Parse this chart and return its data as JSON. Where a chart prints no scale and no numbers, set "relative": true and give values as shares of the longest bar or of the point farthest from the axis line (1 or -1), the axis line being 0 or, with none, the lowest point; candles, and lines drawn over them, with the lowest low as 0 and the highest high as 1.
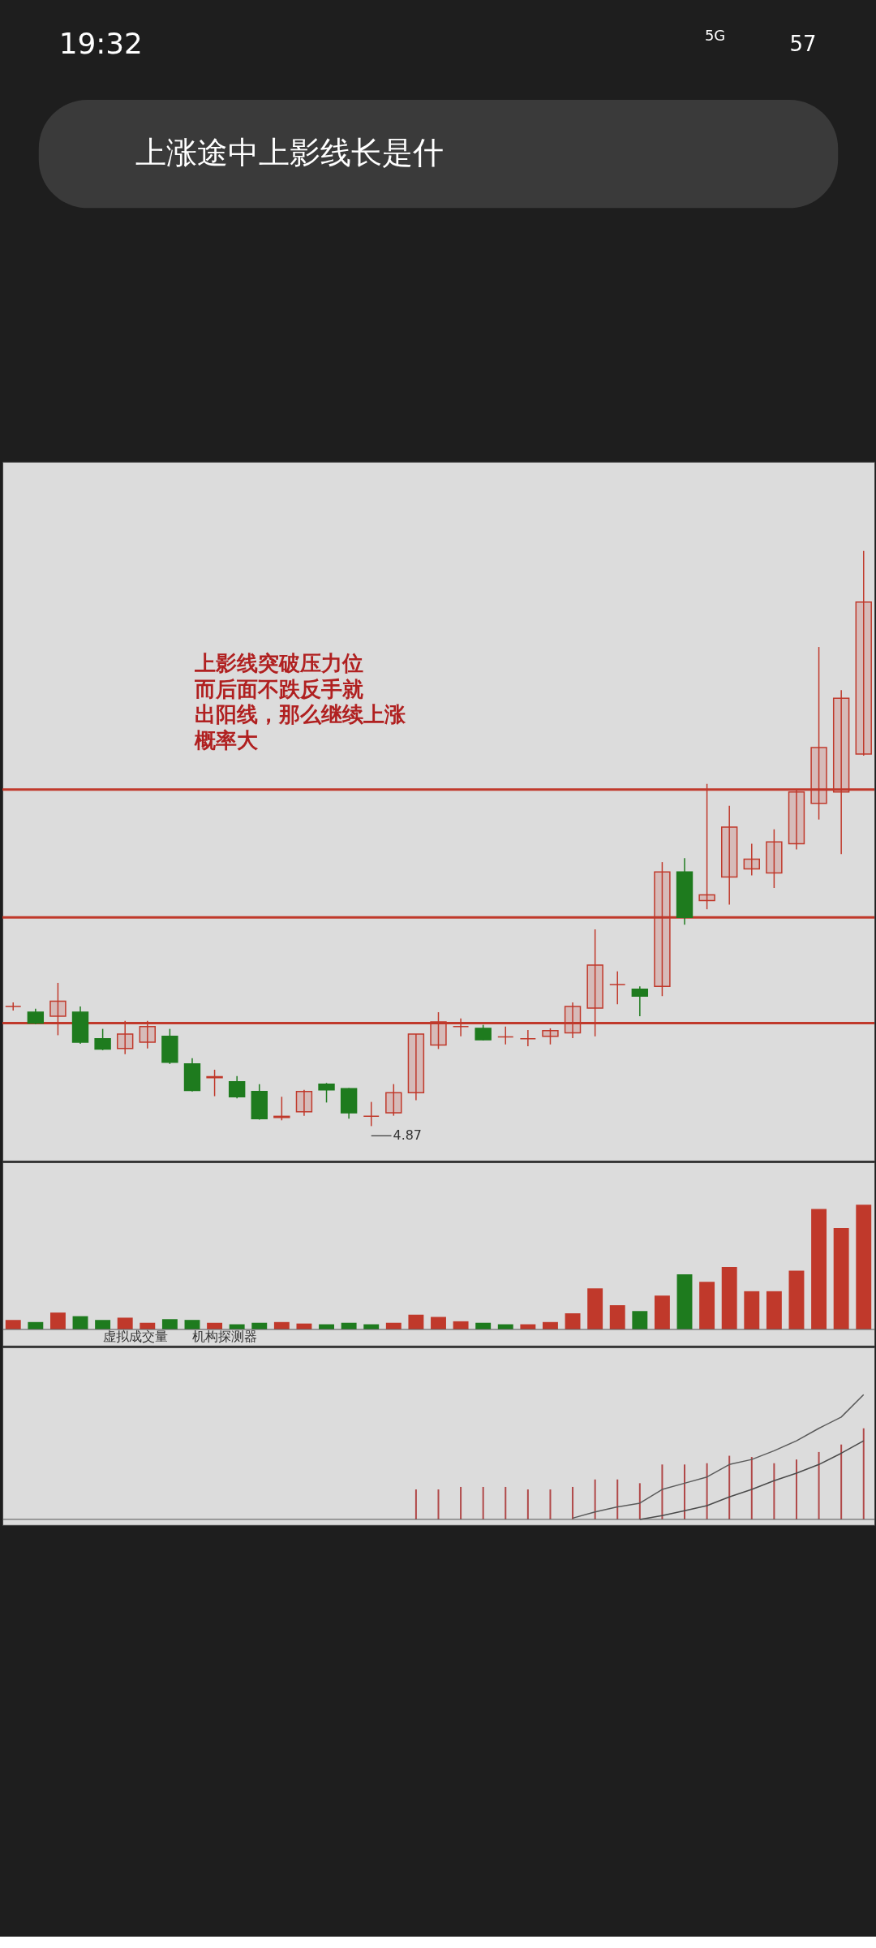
{
  "chart_data": [
    {
      "type": "other",
      "annotations": [
        "19:32",
        "5G",
        "57",
        "上涨途中上影线长是什"
      ]
    },
    {
      "type": "candlestick",
      "relative": true,
      "categories": [
        null,
        null,
        null,
        null,
        null,
        null,
        null,
        null,
        null,
        null,
        null,
        null,
        null,
        null,
        null,
        null,
        null,
        null,
        null,
        null,
        null,
        null,
        null,
        null,
        null,
        null,
        null,
        null,
        null,
        null,
        null,
        null,
        null,
        null,
        null,
        null,
        null,
        null,
        null
      ],
      "ohlc": [
        [
          0.208,
          0.215,
          0.201,
          0.208
        ],
        [
          0.198,
          0.204,
          0.177,
          0.179
        ],
        [
          0.191,
          0.249,
          0.158,
          0.217
        ],
        [
          0.198,
          0.208,
          0.143,
          0.146
        ],
        [
          0.152,
          0.169,
          0.132,
          0.134
        ],
        [
          0.135,
          0.183,
          0.125,
          0.16
        ],
        [
          0.146,
          0.183,
          0.135,
          0.173
        ],
        [
          0.156,
          0.169,
          0.108,
          0.111
        ],
        [
          0.108,
          0.118,
          0.06,
          0.062
        ],
        [
          0.084,
          0.098,
          0.052,
          0.086
        ],
        [
          0.077,
          0.087,
          0.048,
          0.051
        ],
        [
          0.06,
          0.073,
          0.011,
          0.013
        ],
        [
          0.015,
          0.051,
          0.01,
          0.017
        ],
        [
          0.025,
          0.063,
          0.018,
          0.06
        ],
        [
          0.073,
          0.075,
          0.041,
          0.063
        ],
        [
          0.065,
          0.066,
          0.013,
          0.023
        ],
        [
          0.017,
          0.042,
          0,
          0.017
        ],
        [
          0.023,
          0.073,
          0.018,
          0.058
        ],
        [
          0.058,
          0.16,
          0.045,
          0.16
        ],
        [
          0.141,
          0.198,
          0.134,
          0.181
        ],
        [
          0.173,
          0.187,
          0.156,
          0.173
        ],
        [
          0.17,
          0.176,
          0.149,
          0.15
        ],
        [
          0.155,
          0.173,
          0.142,
          0.155
        ],
        [
          0.152,
          0.167,
          0.139,
          0.152
        ],
        [
          0.156,
          0.17,
          0.142,
          0.166
        ],
        [
          0.162,
          0.215,
          0.153,
          0.208
        ],
        [
          0.205,
          0.342,
          0.156,
          0.28
        ],
        [
          0.246,
          0.269,
          0.212,
          0.246
        ],
        [
          0.238,
          0.243,
          0.191,
          0.226
        ],
        [
          0.243,
          0.459,
          0.226,
          0.442
        ],
        [
          0.442,
          0.466,
          0.35,
          0.363
        ],
        [
          0.392,
          0.595,
          0.377,
          0.402
        ],
        [
          0.433,
          0.557,
          0.385,
          0.52
        ],
        [
          0.447,
          0.491,
          0.436,
          0.464
        ],
        [
          0.44,
          0.516,
          0.414,
          0.494
        ],
        [
          0.491,
          0.584,
          0.481,
          0.581
        ],
        [
          0.561,
          0.833,
          0.533,
          0.658
        ],
        [
          0.581,
          0.758,
          0.473,
          0.744
        ],
        [
          0.647,
          1,
          0.644,
          0.911
        ]
      ],
      "colors": [
        "#c0392b",
        "#1e7b1e",
        "#c0392b",
        "#1e7b1e",
        "#1e7b1e",
        "#c0392b",
        "#c0392b",
        "#1e7b1e",
        "#1e7b1e",
        "#c0392b",
        "#1e7b1e",
        "#1e7b1e",
        "#c0392b",
        "#c0392b",
        "#1e7b1e",
        "#1e7b1e",
        "#c0392b",
        "#c0392b",
        "#c0392b",
        "#c0392b",
        "#c0392b",
        "#1e7b1e",
        "#c0392b",
        "#c0392b",
        "#c0392b",
        "#c0392b",
        "#c0392b",
        "#c0392b",
        "#1e7b1e",
        "#c0392b",
        "#1e7b1e",
        "#c0392b",
        "#c0392b",
        "#c0392b",
        "#c0392b",
        "#c0392b",
        "#c0392b",
        "#c0392b",
        "#c0392b"
      ],
      "ref_lines": [
        {
          "axis": "y",
          "value": 0.585,
          "color": "#c0392b"
        },
        {
          "axis": "y",
          "value": 0.363,
          "color": "#c0392b"
        },
        {
          "axis": "y",
          "value": 0.179,
          "color": "#c0392b"
        }
      ],
      "annotations": [
        "上影线突破压力位",
        "而后面不跌反手就",
        "出阳线，那么继续上涨",
        "概率大",
        "4.87"
      ]
    },
    {
      "type": "bar",
      "relative": true,
      "categories": [
        null,
        null,
        null,
        null,
        null,
        null,
        null,
        null,
        null,
        null,
        null,
        null,
        null,
        null,
        null,
        null,
        null,
        null,
        null,
        null,
        null,
        null,
        null,
        null,
        null,
        null,
        null,
        null,
        null,
        null,
        null,
        null,
        null,
        null,
        null,
        null,
        null,
        null,
        null
      ],
      "values": [
        0.076,
        0.059,
        0.135,
        0.106,
        0.076,
        0.094,
        0.053,
        0.082,
        0.076,
        0.053,
        0.041,
        0.053,
        0.059,
        0.047,
        0.041,
        0.053,
        0.041,
        0.053,
        0.118,
        0.1,
        0.065,
        0.053,
        0.041,
        0.041,
        0.059,
        0.129,
        0.329,
        0.194,
        0.147,
        0.271,
        0.441,
        0.382,
        0.5,
        0.306,
        0.306,
        0.471,
        0.965,
        0.812,
        1
      ],
      "colors": [
        "#c0392b",
        "#1e7b1e",
        "#c0392b",
        "#1e7b1e",
        "#1e7b1e",
        "#c0392b",
        "#c0392b",
        "#1e7b1e",
        "#1e7b1e",
        "#c0392b",
        "#1e7b1e",
        "#1e7b1e",
        "#c0392b",
        "#c0392b",
        "#1e7b1e",
        "#1e7b1e",
        "#1e7b1e",
        "#c0392b",
        "#c0392b",
        "#c0392b",
        "#c0392b",
        "#1e7b1e",
        "#1e7b1e",
        "#c0392b",
        "#c0392b",
        "#c0392b",
        "#c0392b",
        "#c0392b",
        "#1e7b1e",
        "#c0392b",
        "#1e7b1e",
        "#c0392b",
        "#c0392b",
        "#c0392b",
        "#c0392b",
        "#c0392b",
        "#c0392b",
        "#c0392b",
        "#c0392b"
      ],
      "annotations": [
        "虚拟成交量",
        "机构探测器"
      ]
    },
    {
      "type": "bar",
      "relative": true,
      "categories": [
        null,
        null,
        null,
        null,
        null,
        null,
        null,
        null,
        null,
        null,
        null,
        null,
        null,
        null,
        null,
        null,
        null,
        null,
        null,
        null,
        null,
        null,
        null,
        null,
        null,
        null,
        null,
        null,
        null,
        null,
        null,
        null,
        null,
        null,
        null,
        null,
        null,
        null,
        null
      ],
      "series": [
        {
          "type": "bar",
          "color": "#b04848",
          "values": [
            null,
            null,
            null,
            null,
            null,
            null,
            null,
            null,
            null,
            null,
            null,
            null,
            null,
            null,
            null,
            null,
            null,
            null,
            0.24,
            0.24,
            0.26,
            0.26,
            0.26,
            0.24,
            0.24,
            0.26,
            0.32,
            0.32,
            0.29,
            0.44,
            0.44,
            0.45,
            0.51,
            0.5,
            0.45,
            0.48,
            0.54,
            0.6,
            0.73
          ]
        },
        {
          "type": "line",
          "color": "#5a5a5a",
          "values": [
            null,
            null,
            null,
            null,
            null,
            null,
            null,
            null,
            null,
            null,
            null,
            null,
            null,
            null,
            null,
            null,
            null,
            null,
            null,
            null,
            null,
            null,
            null,
            null,
            null,
            0.01,
            0.06,
            0.1,
            0.13,
            0.24,
            0.29,
            0.34,
            0.44,
            0.48,
            0.55,
            0.63,
            0.73,
            0.82,
            1
          ]
        },
        {
          "type": "line",
          "color": "#4a4a4a",
          "values": [
            null,
            null,
            null,
            null,
            null,
            null,
            null,
            null,
            null,
            null,
            null,
            null,
            null,
            null,
            null,
            null,
            null,
            null,
            null,
            null,
            null,
            null,
            null,
            null,
            null,
            null,
            null,
            null,
            0,
            0.03,
            0.07,
            0.11,
            0.18,
            0.24,
            0.31,
            0.37,
            0.44,
            0.53,
            0.63
          ]
        }
      ]
    }
  ]
}
